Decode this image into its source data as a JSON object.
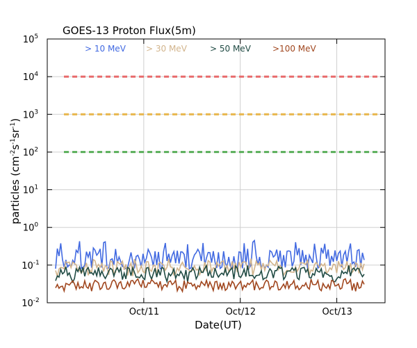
{
  "chart_data": {
    "type": "line",
    "title": "GOES-13 Proton Flux(5m)",
    "xlabel": "Date(UT)",
    "ylabel": {
      "base": "particles (cm",
      "parts": [
        [
          "-2",
          "s"
        ],
        [
          "-1",
          "sr"
        ],
        [
          "-1",
          ")"
        ]
      ]
    },
    "yscale": "log",
    "ylim": [
      0.01,
      100000
    ],
    "yticks": [
      {
        "base": "10",
        "exp": "-2",
        "value": 0.01
      },
      {
        "base": "10",
        "exp": "-1",
        "value": 0.1
      },
      {
        "base": "10",
        "exp": "0",
        "value": 1
      },
      {
        "base": "10",
        "exp": "1",
        "value": 10
      },
      {
        "base": "10",
        "exp": "2",
        "value": 100
      },
      {
        "base": "10",
        "exp": "3",
        "value": 1000
      },
      {
        "base": "10",
        "exp": "4",
        "value": 10000
      },
      {
        "base": "10",
        "exp": "5",
        "value": 100000
      }
    ],
    "xlim": [
      "2013-10-10 12:00",
      "2013-10-13 24:00"
    ],
    "xtick_labels": [
      {
        "label": "Oct/11",
        "x": "2013-10-11 00:00"
      },
      {
        "label": "Oct/12",
        "x": "2013-10-12 00:00"
      },
      {
        "label": "Oct/13",
        "x": "2013-10-13 00:00"
      }
    ],
    "grid": true,
    "legend_placement": "top",
    "thresholds": [
      {
        "value": 10000,
        "color": "#e8696a"
      },
      {
        "value": 1000,
        "color": "#e8b64a"
      },
      {
        "value": 100,
        "color": "#5aaf5a"
      }
    ],
    "series": [
      {
        "name": "> 10 MeV",
        "color": "#4169e1",
        "typical": 0.15,
        "range": [
          0.08,
          0.45
        ]
      },
      {
        "name": "> 30 MeV",
        "color": "#d2b48c",
        "typical": 0.09,
        "range": [
          0.05,
          0.15
        ]
      },
      {
        "name": "> 50 MeV",
        "color": "#1f4a43",
        "typical": 0.06,
        "range": [
          0.035,
          0.1
        ]
      },
      {
        "name": ">100 MeV",
        "color": "#a0461e",
        "typical": 0.03,
        "range": [
          0.02,
          0.045
        ]
      }
    ]
  }
}
